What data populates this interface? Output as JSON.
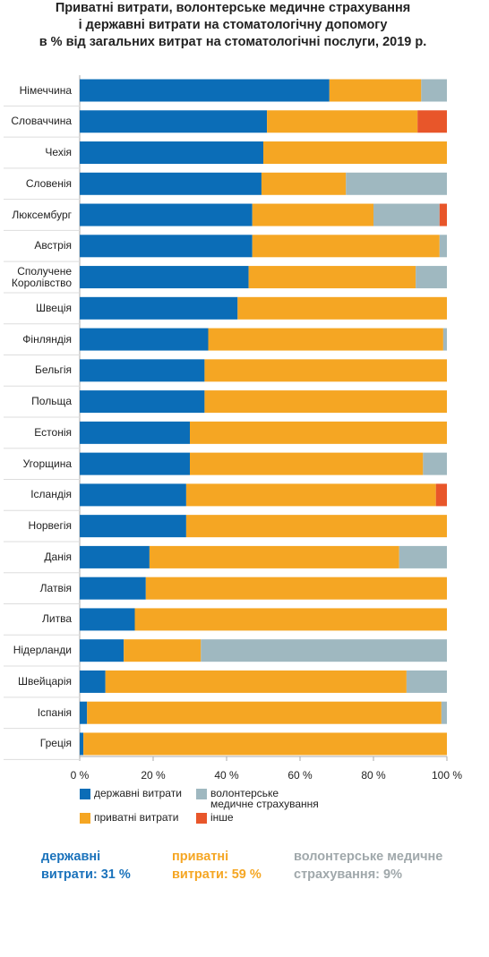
{
  "chart_data": {
    "type": "stacked-barh",
    "title": [
      "Приватні витрати, волонтерське медичне страхування",
      "і державні витрати на стоматологічну допомогу",
      "в % від загальних витрат на стоматологічні послуги, 2019 р."
    ],
    "categories": [
      "Німеччина",
      "Словаччина",
      "Чехія",
      "Словенія",
      "Люксембург",
      "Австрія",
      "Сполучене Королівство",
      "Швеція",
      "Фінляндія",
      "Бельгія",
      "Польща",
      "Естонія",
      "Угорщина",
      "Ісландія",
      "Норвегія",
      "Данія",
      "Латвія",
      "Литва",
      "Нідерланди",
      "Швейцарія",
      "Іспанія",
      "Греція"
    ],
    "series": [
      {
        "name": "державні витрати",
        "color": "#0b6db7",
        "values": [
          68,
          51,
          50,
          49.5,
          47,
          47,
          46,
          43,
          35,
          34,
          34,
          30,
          30,
          29,
          29,
          19,
          18,
          15,
          12,
          7,
          2,
          1
        ]
      },
      {
        "name": "приватні витрати",
        "color": "#f5a623",
        "values": [
          25,
          41,
          50,
          23,
          33,
          51,
          45.5,
          57,
          64,
          66,
          66,
          70,
          63.5,
          68,
          71,
          68,
          82,
          85,
          21,
          82,
          96.5,
          99
        ]
      },
      {
        "name": "волонтерське медичне страхування",
        "color": "#9fb8c0",
        "values": [
          7,
          0,
          0,
          27.5,
          18,
          2,
          8.5,
          0,
          1,
          0,
          0,
          0,
          6.5,
          0,
          0,
          13,
          0,
          0,
          67,
          11,
          1.5,
          0
        ]
      },
      {
        "name": "інше",
        "color": "#e8562a",
        "values": [
          0,
          8,
          0,
          0,
          2,
          0,
          0,
          0,
          0,
          0,
          0,
          0,
          0,
          3,
          0,
          0,
          0,
          0,
          0,
          0,
          0,
          0
        ]
      }
    ],
    "xlim": [
      0,
      100
    ],
    "xticks": [
      {
        "value": 0,
        "label": "0 %"
      },
      {
        "value": 20,
        "label": "20 %"
      },
      {
        "value": 40,
        "label": "40 %"
      },
      {
        "value": 60,
        "label": "60 %"
      },
      {
        "value": 80,
        "label": "80 %"
      },
      {
        "value": 100,
        "label": "100 %"
      }
    ],
    "summary": [
      {
        "lines": [
          "державні",
          "витрати: 31 %"
        ],
        "color": "#1a72bb"
      },
      {
        "lines": [
          "приватні",
          "витрати: 59 %"
        ],
        "color": "#f5a623"
      },
      {
        "lines": [
          "волонтерське медичне",
          "страхування: 9%"
        ],
        "color": "#a0a8ab"
      }
    ]
  }
}
